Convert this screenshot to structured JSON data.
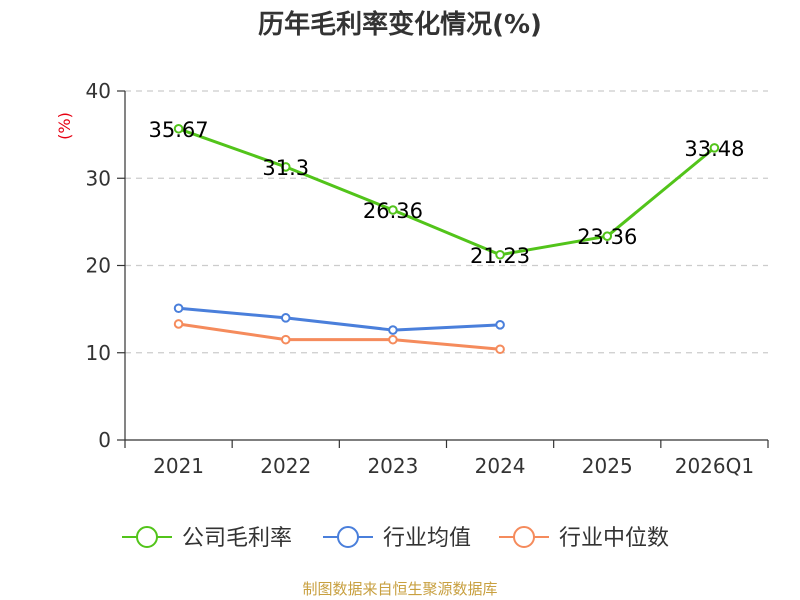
{
  "chart_data": {
    "type": "line",
    "title": "历年毛利率变化情况(%)",
    "ylabel": "(%)",
    "ylim": [
      0,
      40
    ],
    "yticks": [
      0,
      10,
      20,
      30,
      40
    ],
    "categories": [
      "2021",
      "2022",
      "2023",
      "2024",
      "2025",
      "2026Q1"
    ],
    "series": [
      {
        "name": "公司毛利率",
        "color": "#52c41a",
        "values": [
          35.67,
          31.3,
          26.36,
          21.23,
          23.36,
          33.48
        ],
        "labels": [
          "35.67",
          "31.3",
          "26.36",
          "21.23",
          "23.36",
          "33.48"
        ]
      },
      {
        "name": "行业均值",
        "color": "#4a7fdb",
        "values": [
          15.1,
          14.0,
          12.6,
          13.2,
          null,
          null
        ]
      },
      {
        "name": "行业中位数",
        "color": "#f58b5c",
        "values": [
          13.3,
          11.5,
          11.5,
          10.4,
          null,
          null
        ]
      }
    ],
    "grid": true,
    "legend_position": "bottom"
  },
  "footer": {
    "source": "制图数据来自恒生聚源数据库"
  }
}
